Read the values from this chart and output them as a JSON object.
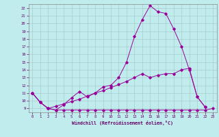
{
  "xlabel": "Windchill (Refroidissement éolien,°C)",
  "background_color": "#c0ecee",
  "grid_color": "#aacccc",
  "line_color": "#990099",
  "xlim": [
    -0.5,
    23.5
  ],
  "ylim": [
    8.5,
    22.5
  ],
  "x_ticks": [
    0,
    1,
    2,
    3,
    4,
    5,
    6,
    7,
    8,
    9,
    10,
    11,
    12,
    13,
    14,
    15,
    16,
    17,
    18,
    19,
    20,
    21,
    22,
    23
  ],
  "y_ticks": [
    9,
    10,
    11,
    12,
    13,
    14,
    15,
    16,
    17,
    18,
    19,
    20,
    21,
    22
  ],
  "line1_x": [
    0,
    1,
    2,
    3,
    4,
    5,
    6,
    7,
    8,
    9,
    10,
    11,
    12,
    13,
    14,
    15,
    16,
    17,
    18,
    19,
    20,
    21,
    22,
    23
  ],
  "line1_y": [
    11.0,
    9.8,
    9.0,
    8.8,
    8.8,
    8.8,
    8.8,
    8.8,
    8.8,
    8.8,
    8.8,
    8.8,
    8.8,
    8.8,
    8.8,
    8.8,
    8.8,
    8.8,
    8.8,
    8.8,
    8.8,
    8.8,
    8.8,
    9.0
  ],
  "line2_x": [
    0,
    1,
    2,
    3,
    4,
    5,
    6,
    7,
    8,
    9,
    10,
    11,
    12,
    13,
    14,
    15,
    16,
    17,
    18,
    19,
    20,
    21,
    22
  ],
  "line2_y": [
    11.0,
    9.8,
    9.0,
    9.3,
    9.6,
    9.9,
    10.2,
    10.6,
    11.0,
    11.3,
    11.7,
    12.1,
    12.5,
    13.0,
    13.5,
    13.0,
    13.3,
    13.5,
    13.5,
    14.0,
    14.2,
    10.5,
    9.2
  ],
  "line3_x": [
    0,
    1,
    2,
    3,
    4,
    5,
    6,
    7,
    8,
    9,
    10,
    11,
    12,
    13,
    14,
    15,
    16,
    17,
    18,
    19,
    20,
    21,
    22
  ],
  "line3_y": [
    11.0,
    9.8,
    9.0,
    8.8,
    9.5,
    10.4,
    11.2,
    10.5,
    11.0,
    11.8,
    12.0,
    13.0,
    15.0,
    18.3,
    20.5,
    22.3,
    21.5,
    21.3,
    19.3,
    17.0,
    14.0,
    10.5,
    9.2
  ]
}
